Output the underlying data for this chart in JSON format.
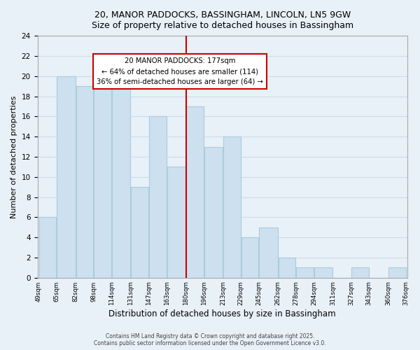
{
  "title1": "20, MANOR PADDOCKS, BASSINGHAM, LINCOLN, LN5 9GW",
  "title2": "Size of property relative to detached houses in Bassingham",
  "xlabel": "Distribution of detached houses by size in Bassingham",
  "ylabel": "Number of detached properties",
  "bar_edges": [
    49,
    65,
    82,
    98,
    114,
    131,
    147,
    163,
    180,
    196,
    213,
    229,
    245,
    262,
    278,
    294,
    311,
    327,
    343,
    360,
    376
  ],
  "bar_heights": [
    6,
    20,
    19,
    20,
    19,
    9,
    16,
    11,
    17,
    13,
    14,
    4,
    5,
    2,
    1,
    1,
    0,
    1,
    0,
    1
  ],
  "tick_labels": [
    "49sqm",
    "65sqm",
    "82sqm",
    "98sqm",
    "114sqm",
    "131sqm",
    "147sqm",
    "163sqm",
    "180sqm",
    "196sqm",
    "213sqm",
    "229sqm",
    "245sqm",
    "262sqm",
    "278sqm",
    "294sqm",
    "311sqm",
    "327sqm",
    "343sqm",
    "360sqm",
    "376sqm"
  ],
  "bar_color": "#cce0f0",
  "bar_edge_color": "#aaccdd",
  "vline_x": 180,
  "vline_color": "#cc0000",
  "annotation_title": "20 MANOR PADDOCKS: 177sqm",
  "annotation_line1": "← 64% of detached houses are smaller (114)",
  "annotation_line2": "36% of semi-detached houses are larger (64) →",
  "annotation_box_color": "#ffffff",
  "annotation_box_edge": "#cc0000",
  "ylim": [
    0,
    24
  ],
  "yticks": [
    0,
    2,
    4,
    6,
    8,
    10,
    12,
    14,
    16,
    18,
    20,
    22,
    24
  ],
  "grid_color": "#d0dce8",
  "background_color": "#e8f0f8",
  "footnote1": "Contains HM Land Registry data © Crown copyright and database right 2025.",
  "footnote2": "Contains public sector information licensed under the Open Government Licence v3.0."
}
